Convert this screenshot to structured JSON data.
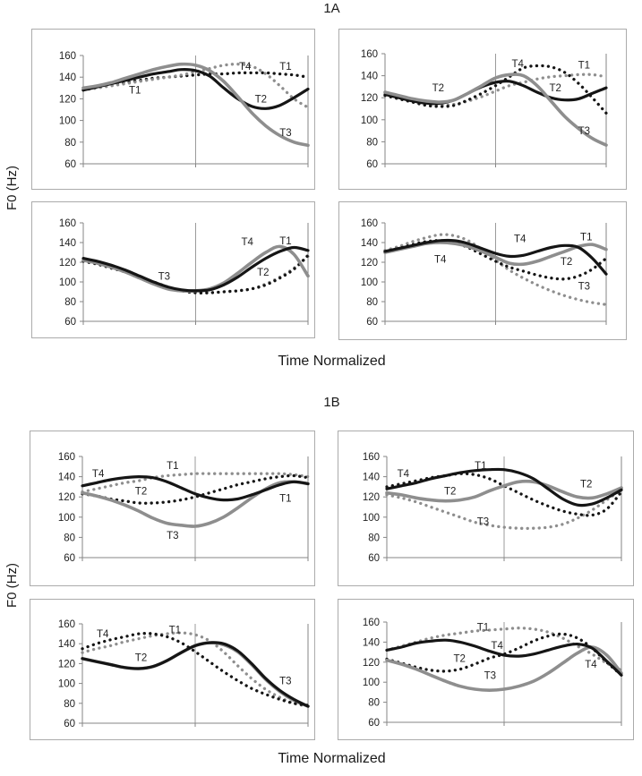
{
  "figure": {
    "panels": [
      {
        "title": "1A",
        "xlabel": "Time Normalized",
        "ylabel": "F0 (Hz)"
      },
      {
        "title": "1B",
        "xlabel": "Time Normalized",
        "ylabel": "F0 (Hz)"
      }
    ],
    "colors": {
      "black": "#151515",
      "gray": "#8e8e8e",
      "axis": "#868686",
      "grid": "#9b9b9b",
      "text": "#1f1f1f"
    }
  },
  "chart_data": [
    {
      "id": "1a-top-left",
      "panel": "1A",
      "position": "top-left",
      "type": "line",
      "x_range": [
        0,
        1
      ],
      "ylim": [
        60,
        160
      ],
      "yticks": [
        60,
        80,
        100,
        120,
        140,
        160
      ],
      "grid": "center-vertical-line",
      "series": [
        {
          "name": "T1",
          "style": "black-dotted",
          "values": [
            128,
            131,
            133,
            135,
            137,
            139,
            140,
            141,
            142,
            143,
            143,
            144,
            144,
            144,
            143,
            142,
            140
          ]
        },
        {
          "name": "T4",
          "style": "gray-dotted",
          "values": [
            128,
            130,
            132,
            134,
            136,
            138,
            140,
            142,
            145,
            148,
            151,
            152,
            150,
            143,
            132,
            120,
            112
          ]
        },
        {
          "name": "T2",
          "style": "black-solid",
          "values": [
            128,
            131,
            134,
            137,
            140,
            143,
            145,
            147,
            146,
            141,
            130,
            120,
            113,
            111,
            114,
            121,
            129
          ]
        },
        {
          "name": "T3",
          "style": "gray-solid",
          "values": [
            130,
            132,
            135,
            139,
            143,
            147,
            150,
            152,
            151,
            146,
            136,
            122,
            107,
            95,
            86,
            80,
            77
          ]
        }
      ],
      "labels": [
        {
          "text": "T1",
          "x": 0.23,
          "y": 128
        },
        {
          "text": "T4",
          "x": 0.72,
          "y": 150
        },
        {
          "text": "T1",
          "x": 0.9,
          "y": 150
        },
        {
          "text": "T2",
          "x": 0.79,
          "y": 120
        },
        {
          "text": "T3",
          "x": 0.9,
          "y": 89
        }
      ]
    },
    {
      "id": "1a-top-right",
      "panel": "1A",
      "position": "top-right",
      "type": "line",
      "x_range": [
        0,
        1
      ],
      "ylim": [
        60,
        160
      ],
      "yticks": [
        60,
        80,
        100,
        120,
        140,
        160
      ],
      "grid": "center-vertical-line",
      "series": [
        {
          "name": "T1",
          "style": "gray-dotted",
          "values": [
            122,
            119,
            116,
            114,
            113,
            114,
            117,
            121,
            126,
            131,
            134,
            137,
            139,
            140,
            141,
            141,
            139
          ]
        },
        {
          "name": "T4",
          "style": "black-dotted",
          "values": [
            122,
            119,
            116,
            113,
            112,
            113,
            118,
            124,
            131,
            139,
            147,
            149,
            148,
            143,
            133,
            120,
            106
          ]
        },
        {
          "name": "T2",
          "style": "black-solid",
          "values": [
            123,
            120,
            117,
            115,
            115,
            118,
            124,
            130,
            134,
            135,
            131,
            125,
            120,
            118,
            119,
            124,
            129
          ]
        },
        {
          "name": "T3",
          "style": "gray-solid",
          "values": [
            125,
            122,
            119,
            117,
            116,
            118,
            124,
            131,
            138,
            141,
            140,
            131,
            117,
            103,
            92,
            83,
            77
          ]
        }
      ],
      "labels": [
        {
          "text": "T2",
          "x": 0.24,
          "y": 129
        },
        {
          "text": "T4",
          "x": 0.6,
          "y": 151
        },
        {
          "text": "T1",
          "x": 0.9,
          "y": 150
        },
        {
          "text": "T2",
          "x": 0.77,
          "y": 129
        },
        {
          "text": "T3",
          "x": 0.9,
          "y": 90
        }
      ]
    },
    {
      "id": "1a-bottom-left",
      "panel": "1A",
      "position": "bottom-left",
      "type": "line",
      "x_range": [
        0,
        1
      ],
      "ylim": [
        60,
        160
      ],
      "yticks": [
        60,
        80,
        100,
        120,
        140,
        160
      ],
      "grid": "center-vertical-line",
      "series": [
        {
          "name": "T3",
          "style": "gray-dotted",
          "values": [
            121,
            118,
            114,
            110,
            105,
            100,
            95,
            91,
            89,
            89,
            90,
            91,
            93,
            98,
            105,
            114,
            126
          ]
        },
        {
          "name": "T2",
          "style": "black-dotted",
          "values": [
            121,
            118,
            114,
            110,
            105,
            100,
            95,
            91,
            89,
            89,
            90,
            91,
            93,
            97,
            104,
            113,
            127
          ]
        },
        {
          "name": "T4",
          "style": "gray-solid",
          "values": [
            122,
            119,
            115,
            110,
            104,
            98,
            93,
            91,
            91,
            93,
            99,
            109,
            120,
            130,
            136,
            128,
            106
          ]
        },
        {
          "name": "T1",
          "style": "black-solid",
          "values": [
            124,
            121,
            117,
            112,
            106,
            100,
            95,
            92,
            91,
            92,
            97,
            105,
            115,
            124,
            131,
            135,
            132
          ]
        }
      ],
      "labels": [
        {
          "text": "T3",
          "x": 0.36,
          "y": 106
        },
        {
          "text": "T4",
          "x": 0.73,
          "y": 141
        },
        {
          "text": "T1",
          "x": 0.9,
          "y": 142
        },
        {
          "text": "T2",
          "x": 0.8,
          "y": 110
        }
      ]
    },
    {
      "id": "1a-bottom-right",
      "panel": "1A",
      "position": "bottom-right",
      "type": "line",
      "x_range": [
        0,
        1
      ],
      "ylim": [
        60,
        160
      ],
      "yticks": [
        60,
        80,
        100,
        120,
        140,
        160
      ],
      "grid": "center-vertical-line",
      "series": [
        {
          "name": "T3",
          "style": "gray-dotted",
          "values": [
            132,
            136,
            141,
            145,
            148,
            147,
            142,
            133,
            122,
            112,
            104,
            97,
            91,
            86,
            82,
            79,
            77
          ]
        },
        {
          "name": "T2",
          "style": "black-dotted",
          "values": [
            131,
            134,
            138,
            141,
            142,
            140,
            135,
            128,
            121,
            115,
            111,
            107,
            104,
            103,
            106,
            113,
            124
          ]
        },
        {
          "name": "T1",
          "style": "gray-solid",
          "values": [
            130,
            133,
            136,
            139,
            140,
            139,
            136,
            131,
            125,
            119,
            118,
            121,
            126,
            131,
            136,
            138,
            133
          ]
        },
        {
          "name": "T4",
          "style": "black-solid",
          "values": [
            131,
            134,
            137,
            140,
            142,
            142,
            139,
            134,
            129,
            126,
            127,
            131,
            135,
            137,
            135,
            124,
            108
          ]
        }
      ],
      "labels": [
        {
          "text": "T4",
          "x": 0.25,
          "y": 123
        },
        {
          "text": "T4",
          "x": 0.61,
          "y": 144
        },
        {
          "text": "T1",
          "x": 0.91,
          "y": 146
        },
        {
          "text": "T2",
          "x": 0.82,
          "y": 121
        },
        {
          "text": "T3",
          "x": 0.9,
          "y": 96
        }
      ]
    },
    {
      "id": "1b-top-left",
      "panel": "1B",
      "position": "top-left",
      "type": "line",
      "x_range": [
        0,
        1
      ],
      "ylim": [
        60,
        160
      ],
      "yticks": [
        60,
        80,
        100,
        120,
        140,
        160
      ],
      "grid": "center-vertical-line",
      "series": [
        {
          "name": "T1",
          "style": "gray-dotted",
          "values": [
            125,
            128,
            131,
            134,
            136,
            139,
            141,
            142,
            143,
            143,
            143,
            143,
            143,
            143,
            143,
            142,
            140
          ]
        },
        {
          "name": "T2",
          "style": "black-dotted",
          "values": [
            123,
            121,
            118,
            116,
            114,
            114,
            115,
            117,
            120,
            124,
            128,
            132,
            135,
            138,
            140,
            141,
            139
          ]
        },
        {
          "name": "T3",
          "style": "gray-solid",
          "values": [
            124,
            121,
            117,
            112,
            106,
            99,
            94,
            92,
            91,
            94,
            100,
            109,
            119,
            128,
            134,
            135,
            133
          ]
        },
        {
          "name": "T4",
          "style": "black-solid",
          "values": [
            131,
            134,
            137,
            139,
            140,
            139,
            135,
            129,
            123,
            119,
            117,
            118,
            122,
            127,
            132,
            135,
            133
          ]
        }
      ],
      "labels": [
        {
          "text": "T4",
          "x": 0.07,
          "y": 143
        },
        {
          "text": "T1",
          "x": 0.4,
          "y": 151
        },
        {
          "text": "T2",
          "x": 0.26,
          "y": 126
        },
        {
          "text": "T3",
          "x": 0.4,
          "y": 82
        },
        {
          "text": "T1",
          "x": 0.9,
          "y": 119
        }
      ]
    },
    {
      "id": "1b-top-right",
      "panel": "1B",
      "position": "top-right",
      "type": "line",
      "x_range": [
        0,
        1
      ],
      "ylim": [
        60,
        160
      ],
      "yticks": [
        60,
        80,
        100,
        120,
        140,
        160
      ],
      "grid": "center-vertical-line",
      "series": [
        {
          "name": "T3",
          "style": "gray-dotted",
          "values": [
            122,
            119,
            115,
            110,
            105,
            100,
            95,
            92,
            90,
            89,
            89,
            90,
            93,
            99,
            107,
            117,
            127
          ]
        },
        {
          "name": "T4",
          "style": "black-dotted",
          "values": [
            130,
            133,
            136,
            139,
            141,
            143,
            142,
            138,
            131,
            124,
            117,
            111,
            106,
            103,
            102,
            108,
            125
          ]
        },
        {
          "name": "T2",
          "style": "gray-solid",
          "values": [
            124,
            122,
            119,
            117,
            116,
            117,
            120,
            126,
            131,
            135,
            135,
            131,
            125,
            120,
            119,
            123,
            129
          ]
        },
        {
          "name": "T1",
          "style": "black-solid",
          "values": [
            128,
            131,
            134,
            138,
            141,
            144,
            146,
            147,
            147,
            144,
            138,
            128,
            118,
            112,
            113,
            119,
            127
          ]
        }
      ],
      "labels": [
        {
          "text": "T4",
          "x": 0.07,
          "y": 143
        },
        {
          "text": "T1",
          "x": 0.4,
          "y": 151
        },
        {
          "text": "T2",
          "x": 0.27,
          "y": 126
        },
        {
          "text": "T2",
          "x": 0.85,
          "y": 133
        },
        {
          "text": "T3",
          "x": 0.41,
          "y": 96
        }
      ]
    },
    {
      "id": "1b-bottom-left",
      "panel": "1B",
      "position": "bottom-left",
      "type": "line",
      "x_range": [
        0,
        1
      ],
      "ylim": [
        60,
        160
      ],
      "yticks": [
        60,
        80,
        100,
        120,
        140,
        160
      ],
      "grid": "center-vertical-line",
      "series": [
        {
          "name": "T3",
          "style": "gray-solid",
          "values": [
            125,
            122,
            119,
            116,
            115,
            117,
            123,
            131,
            138,
            141,
            139,
            132,
            119,
            104,
            92,
            83,
            77
          ]
        },
        {
          "name": "T1",
          "style": "gray-dotted",
          "values": [
            131,
            135,
            138,
            142,
            145,
            148,
            150,
            151,
            149,
            143,
            132,
            118,
            105,
            94,
            86,
            80,
            77
          ]
        },
        {
          "name": "T4",
          "style": "black-dotted",
          "values": [
            135,
            140,
            144,
            147,
            150,
            150,
            147,
            141,
            132,
            122,
            112,
            103,
            95,
            89,
            84,
            80,
            78
          ]
        },
        {
          "name": "T2",
          "style": "black-solid",
          "values": [
            125,
            122,
            119,
            116,
            115,
            117,
            123,
            131,
            138,
            141,
            140,
            133,
            120,
            105,
            93,
            84,
            77
          ]
        }
      ],
      "labels": [
        {
          "text": "T4",
          "x": 0.09,
          "y": 150
        },
        {
          "text": "T1",
          "x": 0.41,
          "y": 154
        },
        {
          "text": "T2",
          "x": 0.26,
          "y": 126
        },
        {
          "text": "T3",
          "x": 0.9,
          "y": 103
        }
      ]
    },
    {
      "id": "1b-bottom-right",
      "panel": "1B",
      "position": "bottom-right",
      "type": "line",
      "x_range": [
        0,
        1
      ],
      "ylim": [
        60,
        160
      ],
      "yticks": [
        60,
        80,
        100,
        120,
        140,
        160
      ],
      "grid": "center-vertical-line",
      "series": [
        {
          "name": "T1",
          "style": "gray-dotted",
          "values": [
            132,
            136,
            140,
            144,
            147,
            149,
            151,
            152,
            153,
            154,
            153,
            150,
            144,
            136,
            128,
            119,
            112
          ]
        },
        {
          "name": "T2",
          "style": "black-dotted",
          "values": [
            123,
            119,
            115,
            112,
            111,
            113,
            118,
            124,
            128,
            134,
            141,
            146,
            148,
            144,
            134,
            120,
            107
          ]
        },
        {
          "name": "T3",
          "style": "gray-solid",
          "values": [
            122,
            118,
            113,
            107,
            101,
            96,
            93,
            92,
            93,
            96,
            101,
            109,
            119,
            129,
            135,
            127,
            109
          ]
        },
        {
          "name": "T4",
          "style": "black-solid",
          "values": [
            132,
            135,
            139,
            141,
            142,
            140,
            136,
            131,
            127,
            126,
            128,
            132,
            136,
            138,
            134,
            121,
            107
          ]
        }
      ],
      "labels": [
        {
          "text": "T1",
          "x": 0.41,
          "y": 155
        },
        {
          "text": "T4",
          "x": 0.47,
          "y": 137
        },
        {
          "text": "T2",
          "x": 0.31,
          "y": 124
        },
        {
          "text": "T3",
          "x": 0.44,
          "y": 107
        },
        {
          "text": "T4",
          "x": 0.87,
          "y": 118
        }
      ]
    }
  ]
}
